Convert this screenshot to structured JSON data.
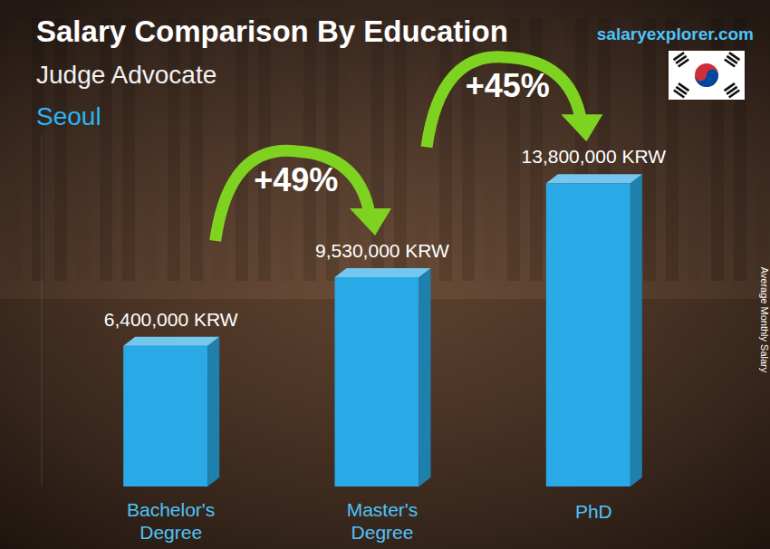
{
  "chart_data": {
    "type": "bar",
    "title": "Salary Comparison By Education",
    "subtitle": "Judge Advocate",
    "location": "Seoul",
    "source": "salaryexplorer.com",
    "ylabel": "Average Monthly Salary",
    "categories": [
      "Bachelor's Degree",
      "Master's Degree",
      "PhD"
    ],
    "values": [
      6400000,
      9530000,
      13800000
    ],
    "value_labels": [
      "6,400,000 KRW",
      "9,530,000 KRW",
      "13,800,000 KRW"
    ],
    "annotations": [
      "+49%",
      "+45%"
    ],
    "color": "#29a9e6",
    "ylim": [
      0,
      16000000
    ],
    "data_labels": true,
    "tick_labels": "x",
    "grid": false
  }
}
